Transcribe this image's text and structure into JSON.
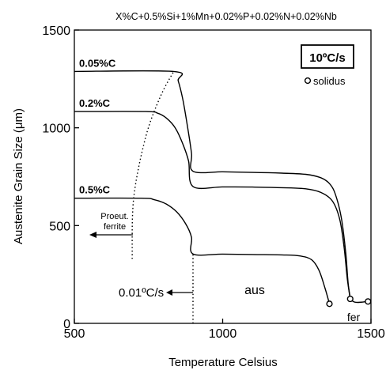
{
  "chart_data": {
    "type": "line",
    "title": "X%C+0.5%Si+1%Mn+0.02%P+0.02%N+0.02%Nb",
    "xlabel": "Temperature Celsius",
    "ylabel": "Austenite Grain Size (μm)",
    "xlim": [
      500,
      1500
    ],
    "ylim": [
      0,
      1500
    ],
    "xticks": [
      500,
      1000,
      1500
    ],
    "yticks": [
      0,
      500,
      1000,
      1500
    ],
    "grid": false,
    "legend": {
      "rate_label": "10ºC/s",
      "solidus_label": "solidus",
      "position": "top-right"
    },
    "series": [
      {
        "name": "0.05%C",
        "x": [
          500,
          835,
          850,
          865,
          880,
          895,
          900,
          1000,
          1100,
          1200,
          1280,
          1330,
          1360,
          1380,
          1400,
          1415,
          1425,
          1440,
          1490
        ],
        "y": [
          1288,
          1288,
          1240,
          1150,
          1020,
          870,
          778,
          775,
          772,
          768,
          762,
          745,
          715,
          660,
          540,
          360,
          180,
          112,
          112
        ]
      },
      {
        "name": "0.2%C",
        "x": [
          500,
          740,
          780,
          810,
          840,
          865,
          885,
          900,
          1000,
          1100,
          1200,
          1280,
          1330,
          1370,
          1395,
          1410,
          1420,
          1430
        ],
        "y": [
          1083,
          1083,
          1075,
          1050,
          1000,
          920,
          830,
          700,
          698,
          697,
          694,
          688,
          670,
          625,
          530,
          380,
          230,
          125
        ]
      },
      {
        "name": "0.5%C",
        "x": [
          500,
          725,
          770,
          810,
          845,
          875,
          895,
          900,
          1000,
          1100,
          1200,
          1260,
          1300,
          1325,
          1345,
          1360
        ],
        "y": [
          640,
          640,
          632,
          610,
          570,
          510,
          440,
          355,
          354,
          352,
          350,
          345,
          325,
          270,
          180,
          100
        ]
      }
    ],
    "dotted_lines": [
      {
        "name": "proeutectoid-ferrite-boundary",
        "x": [
          695,
          700,
          740,
          790,
          835
        ],
        "y": [
          330,
          640,
          950,
          1160,
          1288
        ]
      },
      {
        "name": "cooling-limit-900",
        "x": [
          900,
          900
        ],
        "y": [
          0,
          355
        ]
      }
    ],
    "solidus_points": [
      {
        "x": 1360,
        "y": 100
      },
      {
        "x": 1430,
        "y": 125
      },
      {
        "x": 1490,
        "y": 112
      }
    ],
    "annotations": {
      "proeut_line1": "Proeut.",
      "proeut_line2": "ferrite",
      "cool_rate": "0.01ºC/s",
      "aus": "aus",
      "fer": "fer"
    }
  }
}
